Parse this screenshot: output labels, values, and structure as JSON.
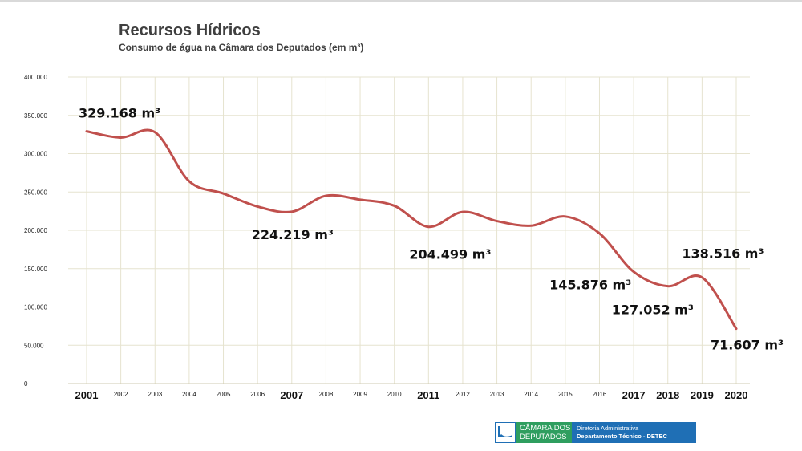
{
  "page": {
    "title": "Recursos Hídricos",
    "subtitle": "Consumo de água na Câmara dos Deputados (em m³)"
  },
  "logo": {
    "line1": "CÂMARA DOS",
    "line2": "DEPUTADOS",
    "dept1": "Diretoria Administrativa",
    "dept2": "Departamento Técnico - DETEC"
  },
  "chart_data": {
    "type": "line",
    "title": "Recursos Hídricos",
    "subtitle": "Consumo de água na Câmara dos Deputados (em m³)",
    "xlabel": "",
    "ylabel": "",
    "ylim": [
      0,
      400000
    ],
    "grid": true,
    "line_color": "#c0504d",
    "grid_color": "#e6e3cf",
    "categories": [
      "2001",
      "2002",
      "2003",
      "2004",
      "2005",
      "2006",
      "2007",
      "2008",
      "2009",
      "2010",
      "2011",
      "2012",
      "2013",
      "2014",
      "2015",
      "2016",
      "2017",
      "2018",
      "2019",
      "2020"
    ],
    "highlight_categories": [
      "2001",
      "2007",
      "2011",
      "2017",
      "2018",
      "2019",
      "2020"
    ],
    "y_ticks": [
      0,
      50000,
      100000,
      150000,
      200000,
      250000,
      300000,
      350000,
      400000
    ],
    "y_tick_labels": [
      "0",
      "50.000",
      "100.000",
      "150.000",
      "200.000",
      "250.000",
      "300.000",
      "350.000",
      "400.000"
    ],
    "series": [
      {
        "name": "Consumo de água",
        "values": [
          329168,
          321000,
          328000,
          264000,
          248000,
          231000,
          224219,
          245000,
          240000,
          232000,
          204499,
          224000,
          212000,
          206000,
          218000,
          196000,
          145876,
          127052,
          138516,
          71607
        ]
      }
    ],
    "annotations": [
      {
        "text": "329.168 m³",
        "year": "2001"
      },
      {
        "text": "224.219 m³",
        "year": "2007"
      },
      {
        "text": "204.499 m³",
        "year": "2011"
      },
      {
        "text": "145.876 m³",
        "year": "2017"
      },
      {
        "text": "127.052 m³",
        "year": "2018"
      },
      {
        "text": "138.516 m³",
        "year": "2019"
      },
      {
        "text": "71.607 m³",
        "year": "2020"
      }
    ]
  }
}
